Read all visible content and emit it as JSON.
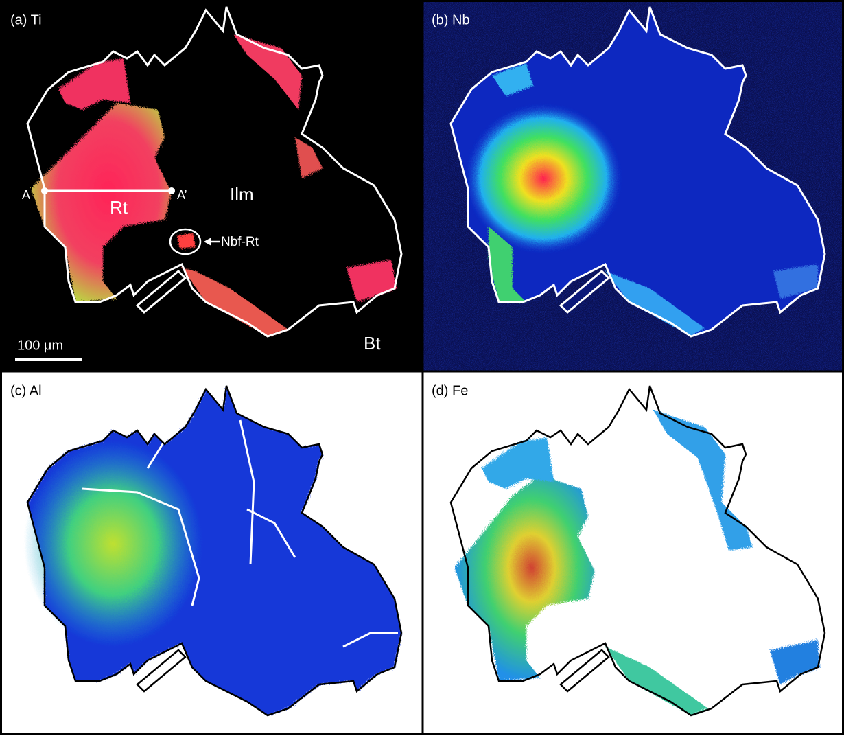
{
  "panels": [
    {
      "label": "(a) Ti"
    },
    {
      "label": "(b) Nb"
    },
    {
      "label": "(c) Al"
    },
    {
      "label": "(d) Fe"
    }
  ],
  "annotations": {
    "a": "A",
    "a_prime": "A’",
    "rt": "Rt",
    "ilm": "Ilm",
    "nbf_rt": "Nbf-Rt",
    "bt": "Bt",
    "scale_bar": "100 μm"
  }
}
